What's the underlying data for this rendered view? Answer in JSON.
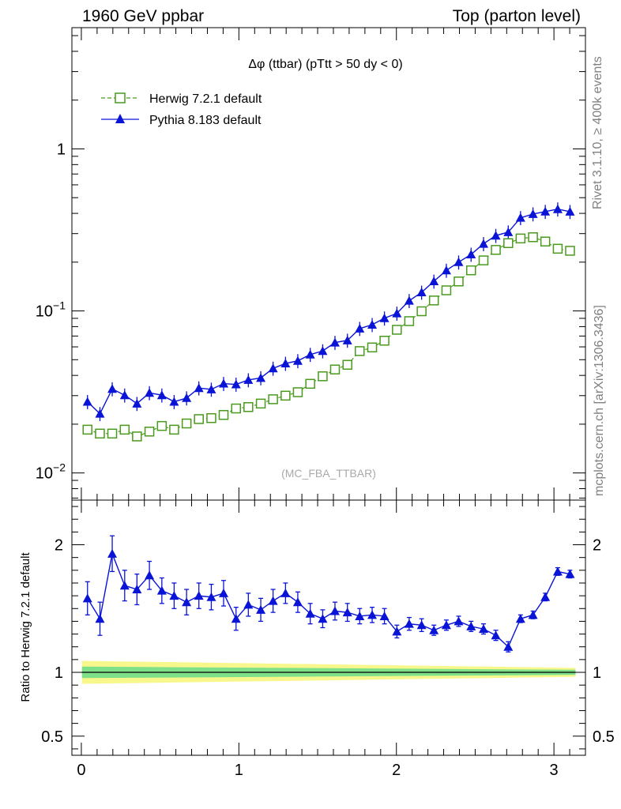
{
  "header": {
    "left_title": "1960 GeV ppbar",
    "right_title": "Top (parton level)"
  },
  "side": {
    "rivet": "Rivet 3.1.10, ≥ 400k events",
    "mcplots": "mcplots.cern.ch [arXiv:1306.3436]"
  },
  "colors": {
    "herwig": "#4a9a1e",
    "pythia": "#0a14d6",
    "band_outer": "#f7f78c",
    "band_inner": "#7fe08a"
  },
  "chart_data": [
    {
      "type": "line",
      "title": "Δφ (ttbar) (pTtt > 50 dy < 0)",
      "watermark": "(MC_FBA_TTBAR)",
      "xlabel": "",
      "ylabel": "",
      "yscale": "log",
      "xlim": [
        -0.06,
        3.2
      ],
      "ylim": [
        0.0068,
        5.6
      ],
      "yticks": [
        {
          "value": 0.01,
          "label": "10",
          "exp": "−2"
        },
        {
          "value": 0.1,
          "label": "10",
          "exp": "−1"
        },
        {
          "value": 1,
          "label": "1",
          "exp": ""
        }
      ],
      "x": [
        0.039,
        0.118,
        0.196,
        0.275,
        0.353,
        0.432,
        0.511,
        0.589,
        0.668,
        0.746,
        0.825,
        0.903,
        0.982,
        1.06,
        1.139,
        1.217,
        1.296,
        1.374,
        1.453,
        1.532,
        1.61,
        1.689,
        1.767,
        1.846,
        1.924,
        2.003,
        2.081,
        2.16,
        2.238,
        2.317,
        2.395,
        2.474,
        2.553,
        2.631,
        2.71,
        2.788,
        2.867,
        2.945,
        3.024,
        3.102
      ],
      "series": [
        {
          "name": "Herwig 7.2.1 default",
          "marker": "open-square",
          "linestyle": "dashed",
          "values": [
            0.0185,
            0.0175,
            0.0175,
            0.0185,
            0.0168,
            0.018,
            0.0195,
            0.0185,
            0.0202,
            0.0215,
            0.0218,
            0.0228,
            0.025,
            0.0255,
            0.0268,
            0.0285,
            0.03,
            0.0315,
            0.0355,
            0.0395,
            0.0435,
            0.0465,
            0.0565,
            0.0595,
            0.0655,
            0.0765,
            0.0865,
            0.0995,
            0.116,
            0.134,
            0.152,
            0.178,
            0.205,
            0.238,
            0.262,
            0.28,
            0.285,
            0.268,
            0.242,
            0.235
          ]
        },
        {
          "name": "Pythia 8.183 default",
          "marker": "filled-triangle",
          "linestyle": "solid",
          "values": [
            0.0275,
            0.0232,
            0.033,
            0.0302,
            0.0268,
            0.0312,
            0.0302,
            0.0275,
            0.029,
            0.0334,
            0.0328,
            0.0356,
            0.0352,
            0.0375,
            0.0386,
            0.0442,
            0.0474,
            0.0492,
            0.0538,
            0.0566,
            0.0638,
            0.0658,
            0.0778,
            0.0822,
            0.0902,
            0.0966,
            0.1156,
            0.1302,
            0.1524,
            0.1778,
            0.2,
            0.2232,
            0.2596,
            0.2917,
            0.3064,
            0.3756,
            0.3963,
            0.4104,
            0.4248,
            0.4098
          ]
        }
      ]
    },
    {
      "type": "line",
      "title": "",
      "xlabel": "",
      "ylabel": "Ratio to Herwig 7.2.1 default",
      "xlim": [
        -0.06,
        3.2
      ],
      "ylim": [
        0.35,
        2.35
      ],
      "xticks": [
        {
          "value": 0,
          "label": "0"
        },
        {
          "value": 1,
          "label": "1"
        },
        {
          "value": 2,
          "label": "2"
        },
        {
          "value": 3,
          "label": "3"
        }
      ],
      "yticks": [
        {
          "value": 0.5,
          "label": "0.5"
        },
        {
          "value": 1,
          "label": "1"
        },
        {
          "value": 2,
          "label": "2"
        }
      ],
      "reference": 1,
      "band_inner_halfwidth": [
        0.045,
        0.02
      ],
      "band_outer_halfwidth": [
        0.09,
        0.035
      ],
      "series": [
        {
          "name": "Pythia 8.183 default",
          "values": [
            1.58,
            1.42,
            1.93,
            1.68,
            1.65,
            1.76,
            1.64,
            1.6,
            1.55,
            1.6,
            1.59,
            1.62,
            1.42,
            1.53,
            1.49,
            1.56,
            1.62,
            1.55,
            1.46,
            1.42,
            1.48,
            1.47,
            1.44,
            1.45,
            1.44,
            1.32,
            1.38,
            1.37,
            1.33,
            1.37,
            1.4,
            1.36,
            1.34,
            1.29,
            1.2,
            1.42,
            1.45,
            1.59,
            1.79,
            1.77
          ],
          "errors": [
            0.13,
            0.13,
            0.14,
            0.12,
            0.12,
            0.11,
            0.1,
            0.1,
            0.1,
            0.1,
            0.1,
            0.1,
            0.09,
            0.09,
            0.09,
            0.09,
            0.08,
            0.08,
            0.08,
            0.07,
            0.07,
            0.07,
            0.06,
            0.06,
            0.06,
            0.05,
            0.05,
            0.05,
            0.04,
            0.04,
            0.04,
            0.04,
            0.04,
            0.04,
            0.04,
            0.03,
            0.03,
            0.03,
            0.03,
            0.03
          ]
        }
      ]
    }
  ]
}
